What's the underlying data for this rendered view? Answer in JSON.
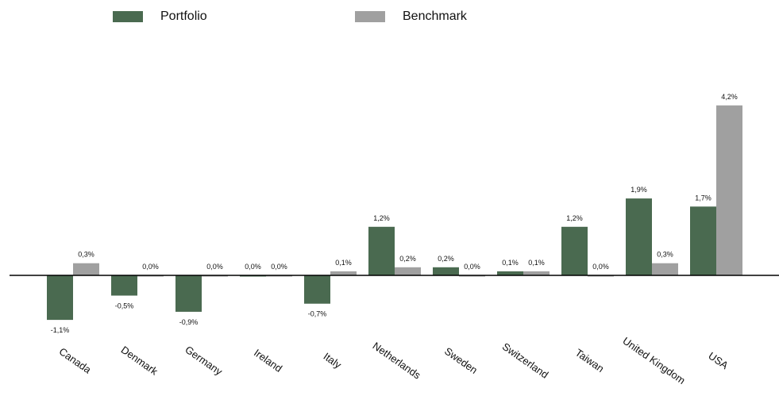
{
  "legend": {
    "portfolio_label": "Portfolio",
    "benchmark_label": "Benchmark"
  },
  "chart_data": {
    "type": "bar",
    "categories": [
      "Canada",
      "Denmark",
      "Germany",
      "Ireland",
      "Italy",
      "Netherlands",
      "Sweden",
      "Switzerland",
      "Taiwan",
      "United Kingdom",
      "USA"
    ],
    "series": [
      {
        "name": "Portfolio",
        "color": "#4a6a50",
        "values": [
          -1.1,
          -0.5,
          -0.9,
          0.0,
          -0.7,
          1.2,
          0.2,
          0.1,
          1.2,
          1.9,
          1.7
        ],
        "labels": [
          "-1,1%",
          "-0,5%",
          "-0,9%",
          "0,0%",
          "-0,7%",
          "1,2%",
          "0,2%",
          "0,1%",
          "1,2%",
          "1,9%",
          "1,7%"
        ]
      },
      {
        "name": "Benchmark",
        "color": "#a0a0a0",
        "values": [
          0.3,
          0.0,
          0.0,
          0.0,
          0.1,
          0.2,
          0.0,
          0.1,
          0.0,
          0.3,
          4.2
        ],
        "labels": [
          "0,3%",
          "0,0%",
          "0,0%",
          "0,0%",
          "0,1%",
          "0,2%",
          "0,0%",
          "0,1%",
          "0,0%",
          "0,3%",
          "4,2%"
        ]
      }
    ],
    "ylim": [
      -1.5,
      4.5
    ],
    "grid": false,
    "legend_position": "top-left",
    "title": "",
    "xlabel": "",
    "ylabel": ""
  }
}
